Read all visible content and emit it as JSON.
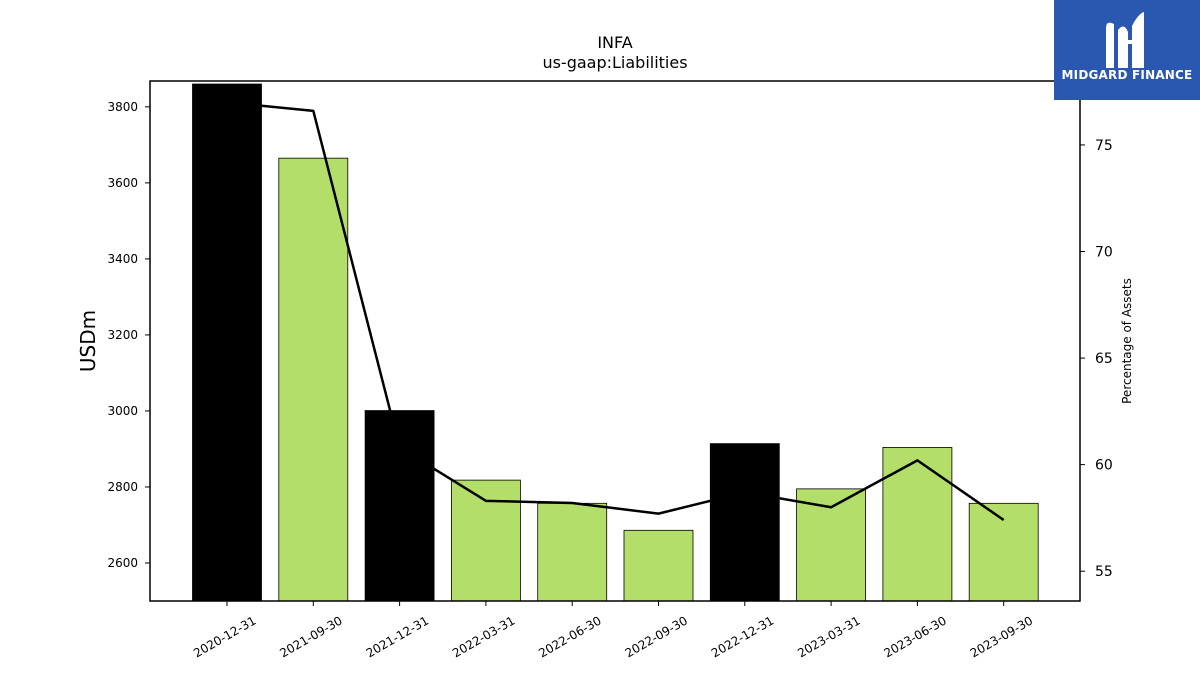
{
  "logo": {
    "text": "MIDGARD FINANCE",
    "icon": "mf-monogram-icon",
    "background": "#2a57b0"
  },
  "chart_data": {
    "type": "bar",
    "title": "INFA",
    "subtitle": "us-gaap:Liabilities",
    "ylabel": "USDm",
    "ylabel_right": "Percentage of Assets",
    "categories": [
      "2020-12-31",
      "2021-09-30",
      "2021-12-31",
      "2022-03-31",
      "2022-06-30",
      "2022-09-30",
      "2022-12-31",
      "2023-03-31",
      "2023-06-30",
      "2023-09-30"
    ],
    "series": [
      {
        "kind": "bar",
        "axis": "left",
        "values": [
          3860,
          3665,
          3001,
          2818,
          2757,
          2686,
          2914,
          2795,
          2904,
          2757
        ],
        "colors": [
          "#000000",
          "#b3de69",
          "#000000",
          "#b3de69",
          "#b3de69",
          "#b3de69",
          "#000000",
          "#b3de69",
          "#b3de69",
          "#b3de69"
        ]
      },
      {
        "kind": "line",
        "axis": "right",
        "color": "#000000",
        "values": [
          77.0,
          76.6,
          60.8,
          58.3,
          58.2,
          57.7,
          58.7,
          58.0,
          60.2,
          57.4
        ]
      }
    ],
    "ylim": [
      2500,
      3868
    ],
    "ylim_right": [
      53.6,
      78.0
    ],
    "yticks": [
      2600,
      2800,
      3000,
      3200,
      3400,
      3600,
      3800
    ],
    "yticks_right": [
      55,
      60,
      65,
      70,
      75
    ],
    "grid": false,
    "legend": "none"
  }
}
